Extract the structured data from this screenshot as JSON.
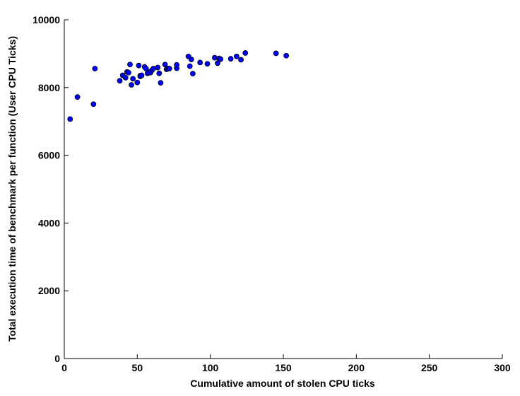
{
  "chart_data": {
    "type": "scatter",
    "title": "",
    "xlabel": "Cumulative amount of stolen CPU ticks",
    "ylabel": "Total execution time of benchmark per function (User CPU Ticks)",
    "xlim": [
      0,
      300
    ],
    "ylim": [
      0,
      10000
    ],
    "xticks": [
      0,
      50,
      100,
      150,
      200,
      250,
      300
    ],
    "yticks": [
      0,
      2000,
      4000,
      6000,
      8000,
      10000
    ],
    "xtick_labels": [
      "0",
      "50",
      "100",
      "150",
      "200",
      "250",
      "300"
    ],
    "ytick_labels": [
      "0",
      "2000",
      "4000",
      "6000",
      "8000",
      "10000"
    ],
    "grid": false,
    "legend": "none",
    "marker_color": "#0000ff",
    "marker_edge_color": "#000000",
    "series": [
      {
        "x": [
          4,
          9,
          20,
          21,
          38,
          40,
          42,
          43,
          44,
          45,
          46,
          47,
          50,
          51,
          52,
          52,
          53,
          55,
          56,
          57,
          58,
          59,
          60,
          61,
          64,
          65,
          66,
          69,
          70,
          71,
          72,
          77,
          77,
          85,
          86,
          87,
          88,
          93,
          98,
          103,
          105,
          106,
          107,
          114,
          118,
          121,
          124,
          145,
          152
        ],
        "y": [
          7070,
          7720,
          7510,
          8560,
          8200,
          8360,
          8290,
          8460,
          8440,
          8680,
          8080,
          8260,
          8150,
          8650,
          8350,
          8330,
          8360,
          8610,
          8560,
          8420,
          8450,
          8440,
          8510,
          8560,
          8590,
          8420,
          8140,
          8680,
          8540,
          8560,
          8560,
          8570,
          8670,
          8920,
          8630,
          8830,
          8410,
          8740,
          8700,
          8880,
          8720,
          8860,
          8840,
          8850,
          8920,
          8820,
          9020,
          9010,
          8940
        ]
      }
    ]
  }
}
